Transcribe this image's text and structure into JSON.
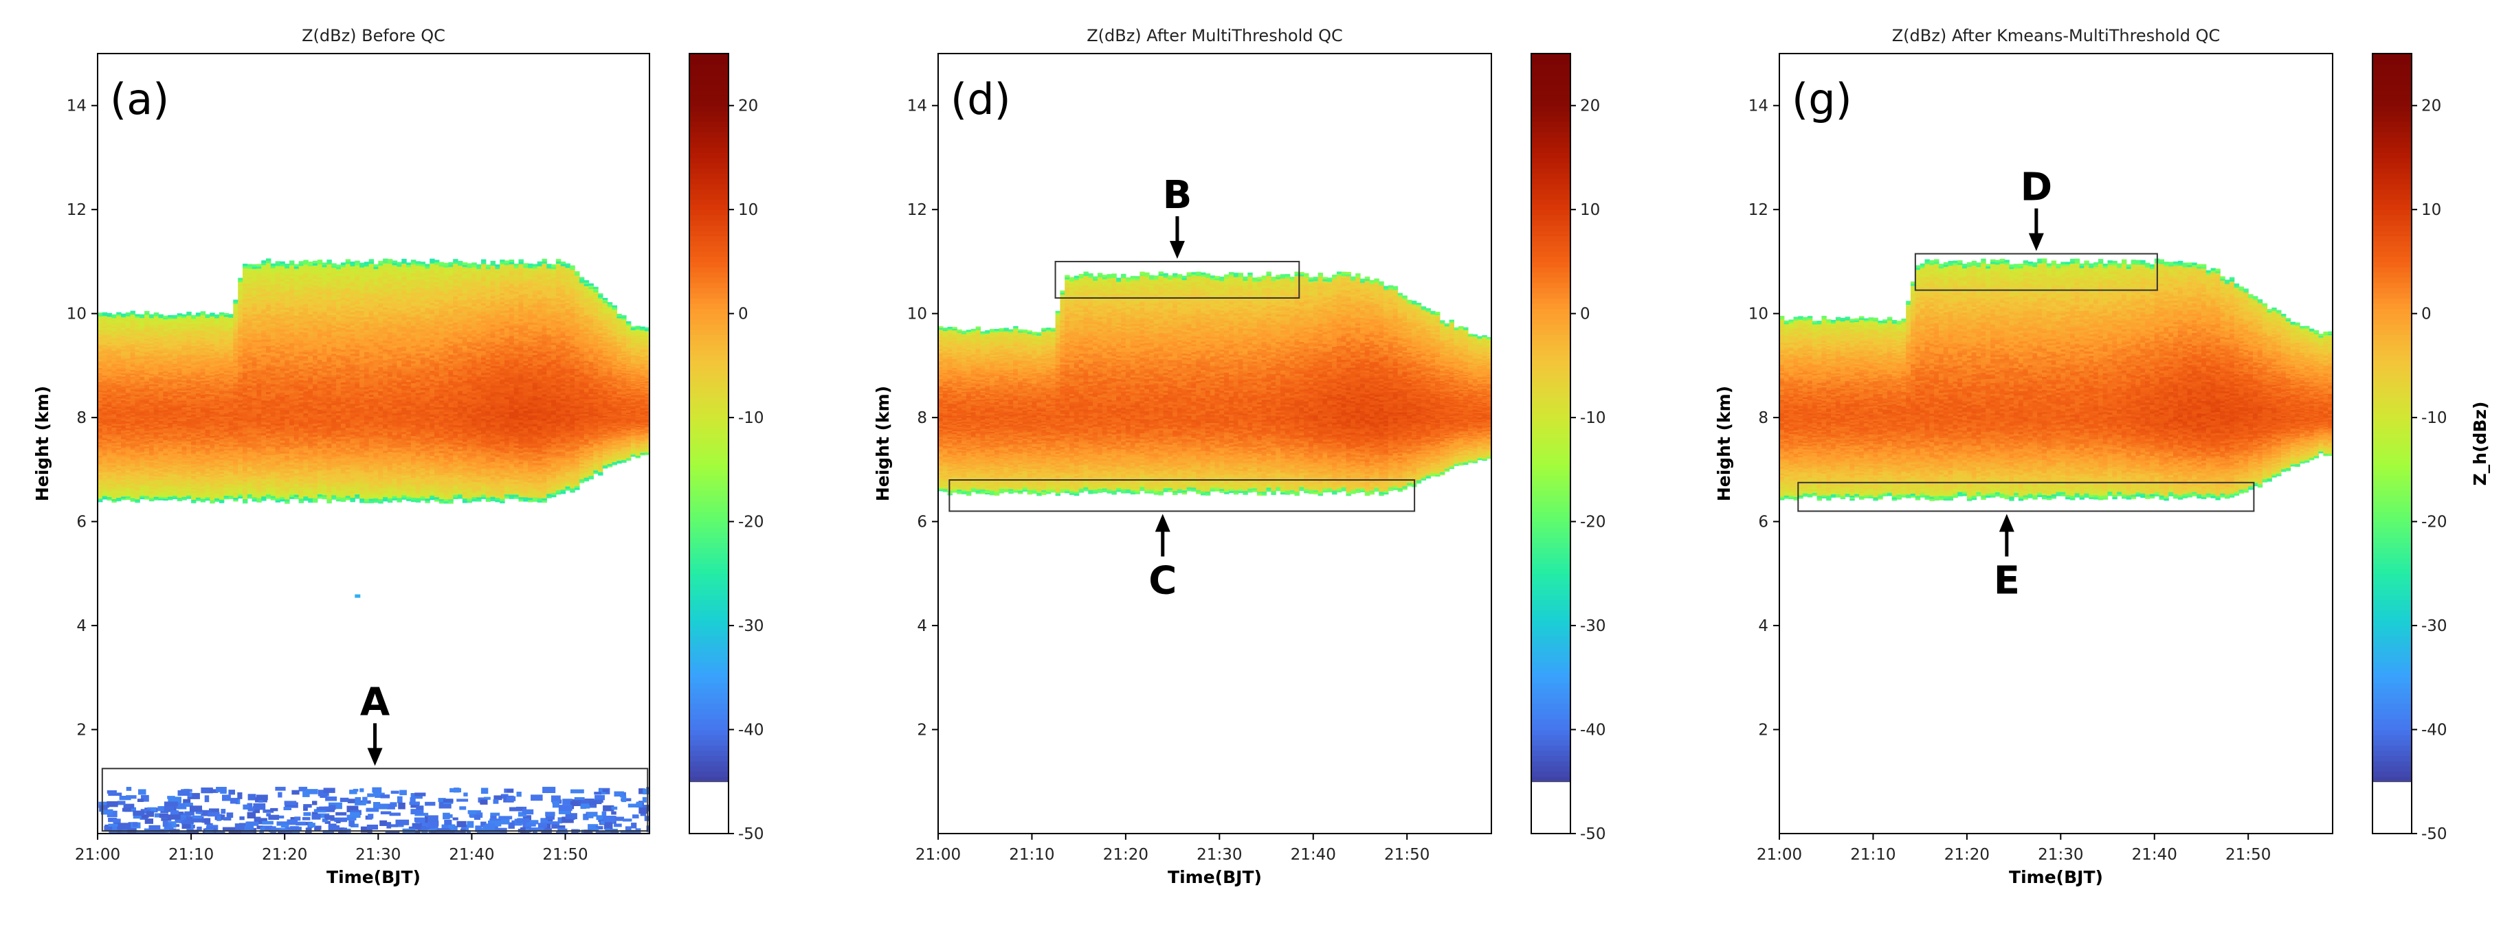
{
  "chart_data": [
    {
      "type": "heatmap",
      "title": "Z(dBz) Before QC",
      "panel_label": "(a)",
      "xlabel": "Time(BJT)",
      "ylabel": "Height (km)",
      "x_ticks": [
        "21:00",
        "21:10",
        "21:20",
        "21:30",
        "21:40",
        "21:50"
      ],
      "x_tick_minutes": [
        0,
        10,
        20,
        30,
        40,
        50
      ],
      "xlim_minutes": [
        0,
        59
      ],
      "y_ticks": [
        2,
        4,
        6,
        8,
        10,
        12,
        14
      ],
      "ylim": [
        0,
        15
      ],
      "annotations": [
        {
          "text": "A",
          "box_minutes": [
            0.5,
            58.8
          ],
          "box_km": [
            0.05,
            1.25
          ],
          "arrow": "down"
        }
      ],
      "colorbar": {
        "label": "",
        "ticks": [
          20,
          10,
          0,
          -10,
          -20,
          -30,
          -40,
          -50
        ],
        "range": [
          -50,
          25
        ]
      },
      "cloud": {
        "base_km": 6.4,
        "top_km": 10.0,
        "top_raise_km": 11.0,
        "raise_start_min": 15,
        "raise_end_min": 49,
        "end_top_km": 9.7,
        "end_base_km": 7.3,
        "core_km": 8.0,
        "core_dbz": 5,
        "edge_dbz": -12
      },
      "clutter_km": [
        0.05,
        0.9
      ]
    },
    {
      "type": "heatmap",
      "title": "Z(dBz) After MultiThreshold QC",
      "panel_label": "(d)",
      "xlabel": "Time(BJT)",
      "ylabel": "Height (km)",
      "x_ticks": [
        "21:00",
        "21:10",
        "21:20",
        "21:30",
        "21:40",
        "21:50"
      ],
      "x_tick_minutes": [
        0,
        10,
        20,
        30,
        40,
        50
      ],
      "xlim_minutes": [
        0,
        59
      ],
      "y_ticks": [
        2,
        4,
        6,
        8,
        10,
        12,
        14
      ],
      "ylim": [
        0,
        15
      ],
      "annotations": [
        {
          "text": "B",
          "box_minutes": [
            12.5,
            38.5
          ],
          "box_km": [
            10.3,
            11.0
          ],
          "arrow": "down"
        },
        {
          "text": "C",
          "box_minutes": [
            1.2,
            50.8
          ],
          "box_km": [
            6.2,
            6.8
          ],
          "arrow": "up"
        }
      ],
      "colorbar": {
        "label": "",
        "ticks": [
          20,
          10,
          0,
          -10,
          -20,
          -30,
          -40,
          -50
        ],
        "range": [
          -50,
          25
        ]
      },
      "cloud": {
        "base_km": 6.55,
        "top_km": 9.7,
        "top_raise_km": 10.75,
        "raise_start_min": 13,
        "raise_end_min": 44,
        "end_top_km": 9.6,
        "end_base_km": 7.2,
        "core_km": 8.0,
        "core_dbz": 5,
        "edge_dbz": -10
      }
    },
    {
      "type": "heatmap",
      "title": "Z(dBz) After Kmeans-MultiThreshold QC",
      "panel_label": "(g)",
      "xlabel": "Time(BJT)",
      "ylabel": "Height (km)",
      "x_ticks": [
        "21:00",
        "21:10",
        "21:20",
        "21:30",
        "21:40",
        "21:50"
      ],
      "x_tick_minutes": [
        0,
        10,
        20,
        30,
        40,
        50
      ],
      "xlim_minutes": [
        0,
        59
      ],
      "y_ticks": [
        2,
        4,
        6,
        8,
        10,
        12,
        14
      ],
      "ylim": [
        0,
        15
      ],
      "annotations": [
        {
          "text": "D",
          "box_minutes": [
            14.5,
            40.3
          ],
          "box_km": [
            10.45,
            11.15
          ],
          "arrow": "down"
        },
        {
          "text": "E",
          "box_minutes": [
            2.0,
            50.6
          ],
          "box_km": [
            6.2,
            6.75
          ],
          "arrow": "up"
        }
      ],
      "colorbar": {
        "label": "Z_h(dBz)",
        "ticks": [
          20,
          10,
          0,
          -10,
          -20,
          -30,
          -40,
          -50
        ],
        "range": [
          -50,
          25
        ]
      },
      "cloud": {
        "base_km": 6.45,
        "top_km": 9.9,
        "top_raise_km": 11.0,
        "raise_start_min": 14,
        "raise_end_min": 43,
        "end_top_km": 9.6,
        "end_base_km": 7.3,
        "core_km": 8.0,
        "core_dbz": 5,
        "edge_dbz": -11
      }
    }
  ]
}
